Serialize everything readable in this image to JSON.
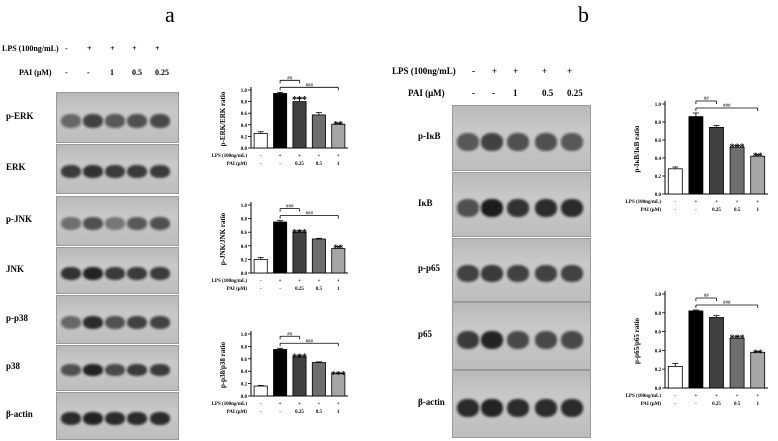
{
  "panels": {
    "a": {
      "letter": "a",
      "lps_label": "LPS (100ng/mL)",
      "pai_label": "PAI (μM)",
      "lps_marks": [
        "-",
        "+",
        "+",
        "+",
        "+"
      ],
      "pai_marks": [
        "-",
        "-",
        "1",
        "0.5",
        "0.25"
      ],
      "blot_labels": [
        "p-ERK",
        "ERK",
        "p-JNK",
        "JNK",
        "p-p38",
        "p38",
        "β-actin"
      ]
    },
    "b": {
      "letter": "b",
      "lps_label": "LPS (100ng/mL)",
      "pai_label": "PAI (μM)",
      "lps_marks": [
        "-",
        "+",
        "+",
        "+",
        "+"
      ],
      "pai_marks": [
        "-",
        "-",
        "1",
        "0.5",
        "0.25"
      ],
      "blot_labels": [
        "p-IκB",
        "IκB",
        "p-p65",
        "p65",
        "β-actin"
      ]
    }
  },
  "chart_data": [
    {
      "type": "bar",
      "ylabel": "p-ERK/ERK ratio",
      "ylim": [
        0,
        1.0
      ],
      "yticks": [
        "0.0",
        "0.2",
        "0.4",
        "0.6",
        "0.8",
        "1.0"
      ],
      "values": [
        0.25,
        0.94,
        0.8,
        0.57,
        0.41
      ],
      "errors": [
        0.03,
        0.02,
        0.06,
        0.04,
        0.02
      ],
      "colors": [
        "#ffffff",
        "#000000",
        "#404040",
        "#6e6e6e",
        "#a6a6a6"
      ],
      "stars": [
        "",
        "",
        "***",
        "",
        "**"
      ],
      "brackets": [
        {
          "to": 2,
          "label": "##"
        },
        {
          "to": 4,
          "label": "###"
        }
      ],
      "lps_label": "LPS (100ng/mL)",
      "pai_label": "PAI (μM)",
      "lps_marks": [
        "-",
        "+",
        "+",
        "+",
        "+"
      ],
      "pai_marks": [
        "-",
        "-",
        "0.25",
        "0.5",
        "1"
      ]
    },
    {
      "type": "bar",
      "ylabel": "p-JNK/JNK ratio",
      "ylim": [
        0,
        1.0
      ],
      "yticks": [
        "0.0",
        "0.2",
        "0.4",
        "0.6",
        "0.8",
        "1.0"
      ],
      "values": [
        0.2,
        0.75,
        0.6,
        0.5,
        0.36
      ],
      "errors": [
        0.03,
        0.02,
        0.02,
        0.01,
        0.03
      ],
      "colors": [
        "#ffffff",
        "#000000",
        "#404040",
        "#6e6e6e",
        "#a6a6a6"
      ],
      "stars": [
        "",
        "",
        "***",
        "",
        "**"
      ],
      "brackets": [
        {
          "to": 2,
          "label": "###"
        },
        {
          "to": 4,
          "label": "###"
        }
      ],
      "lps_label": "LPS (100ng/mL)",
      "pai_label": "PAI (μM)",
      "lps_marks": [
        "-",
        "+",
        "+",
        "+",
        "+"
      ],
      "pai_marks": [
        "-",
        "-",
        "0.25",
        "0.5",
        "1"
      ]
    },
    {
      "type": "bar",
      "ylabel": "p-p38/p38 ratio",
      "ylim": [
        0,
        1.0
      ],
      "yticks": [
        "0.0",
        "0.2",
        "0.4",
        "0.6",
        "0.8",
        "1.0"
      ],
      "values": [
        0.16,
        0.75,
        0.63,
        0.54,
        0.36
      ],
      "errors": [
        0.01,
        0.02,
        0.02,
        0.01,
        0.01
      ],
      "colors": [
        "#ffffff",
        "#000000",
        "#404040",
        "#6e6e6e",
        "#a6a6a6"
      ],
      "stars": [
        "",
        "",
        "***",
        "",
        "***"
      ],
      "brackets": [
        {
          "to": 2,
          "label": "##"
        },
        {
          "to": 4,
          "label": "###"
        }
      ],
      "lps_label": "LPS (100ng/mL)",
      "pai_label": "PAI (μM)",
      "lps_marks": [
        "-",
        "+",
        "+",
        "+",
        "+"
      ],
      "pai_marks": [
        "-",
        "-",
        "0.25",
        "0.5",
        "1"
      ]
    },
    {
      "type": "bar",
      "ylabel": "p-IκB/IκB ratio",
      "ylim": [
        0,
        1.0
      ],
      "yticks": [
        "0.0",
        "0.2",
        "0.4",
        "0.6",
        "0.8",
        "1.0"
      ],
      "values": [
        0.28,
        0.86,
        0.74,
        0.52,
        0.42
      ],
      "errors": [
        0.02,
        0.04,
        0.02,
        0.02,
        0.02
      ],
      "colors": [
        "#ffffff",
        "#000000",
        "#404040",
        "#6e6e6e",
        "#a6a6a6"
      ],
      "stars": [
        "",
        "",
        "",
        "***",
        "**"
      ],
      "brackets": [
        {
          "to": 2,
          "label": "##"
        },
        {
          "to": 4,
          "label": "###"
        }
      ],
      "lps_label": "LPS (100ng/mL)",
      "pai_label": "PAI (μM)",
      "lps_marks": [
        "-",
        "+",
        "+",
        "+",
        "+"
      ],
      "pai_marks": [
        "-",
        "-",
        "0.25",
        "0.5",
        "1"
      ]
    },
    {
      "type": "bar",
      "ylabel": "p-p65/p65 ratio",
      "ylim": [
        0,
        1.0
      ],
      "yticks": [
        "0.0",
        "0.2",
        "0.4",
        "0.6",
        "0.8",
        "1.0"
      ],
      "values": [
        0.23,
        0.82,
        0.75,
        0.53,
        0.38
      ],
      "errors": [
        0.03,
        0.01,
        0.02,
        0.02,
        0.01
      ],
      "colors": [
        "#ffffff",
        "#000000",
        "#404040",
        "#6e6e6e",
        "#a6a6a6"
      ],
      "stars": [
        "",
        "",
        "",
        "***",
        "**"
      ],
      "brackets": [
        {
          "to": 2,
          "label": "##"
        },
        {
          "to": 4,
          "label": "###"
        }
      ],
      "lps_label": "LPS (100ng/mL)",
      "pai_label": "PAI (μM)",
      "lps_marks": [
        "-",
        "+",
        "+",
        "+",
        "+"
      ],
      "pai_marks": [
        "-",
        "-",
        "0.25",
        "0.5",
        "1"
      ]
    }
  ]
}
